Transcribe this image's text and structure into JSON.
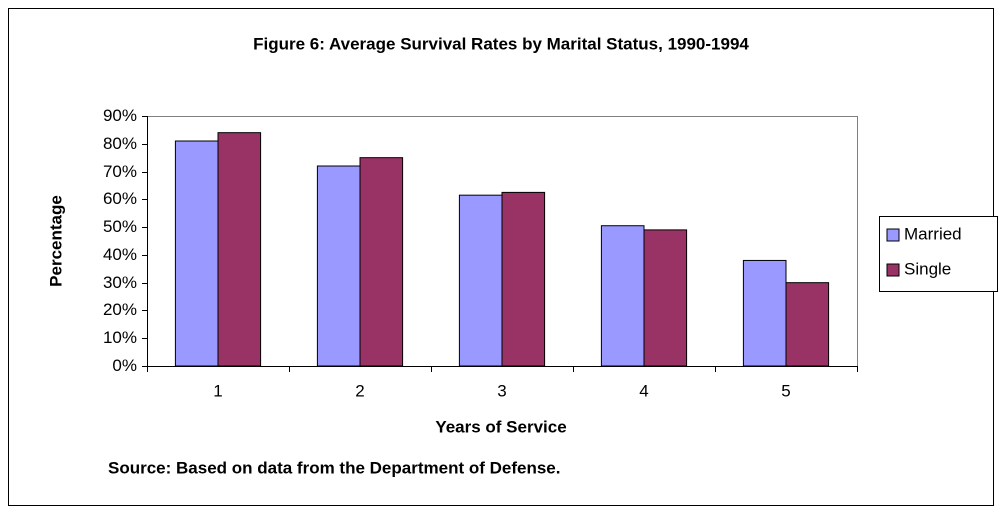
{
  "chart_data": {
    "type": "bar",
    "title": "Figure 6: Average Survival Rates by Marital Status, 1990-1994",
    "x_label": "Years of Service",
    "y_label": "Percentage",
    "source": "Source: Based on data from the Department of Defense.",
    "categories": [
      "1",
      "2",
      "3",
      "4",
      "5"
    ],
    "series": [
      {
        "name": "Married",
        "color": "#9999ff",
        "values": [
          81,
          72,
          61.5,
          50.5,
          38
        ]
      },
      {
        "name": "Single",
        "color": "#993366",
        "values": [
          84,
          75,
          62.5,
          49,
          30
        ]
      }
    ],
    "ylim": [
      0,
      90
    ],
    "yticks": [
      {
        "value": 0,
        "label": "0%"
      },
      {
        "value": 10,
        "label": "10%"
      },
      {
        "value": 20,
        "label": "20%"
      },
      {
        "value": 30,
        "label": "30%"
      },
      {
        "value": 40,
        "label": "40%"
      },
      {
        "value": 50,
        "label": "50%"
      },
      {
        "value": 60,
        "label": "60%"
      },
      {
        "value": 70,
        "label": "70%"
      },
      {
        "value": 80,
        "label": "80%"
      },
      {
        "value": 90,
        "label": "90%"
      }
    ],
    "grid": false,
    "legend": "right"
  }
}
